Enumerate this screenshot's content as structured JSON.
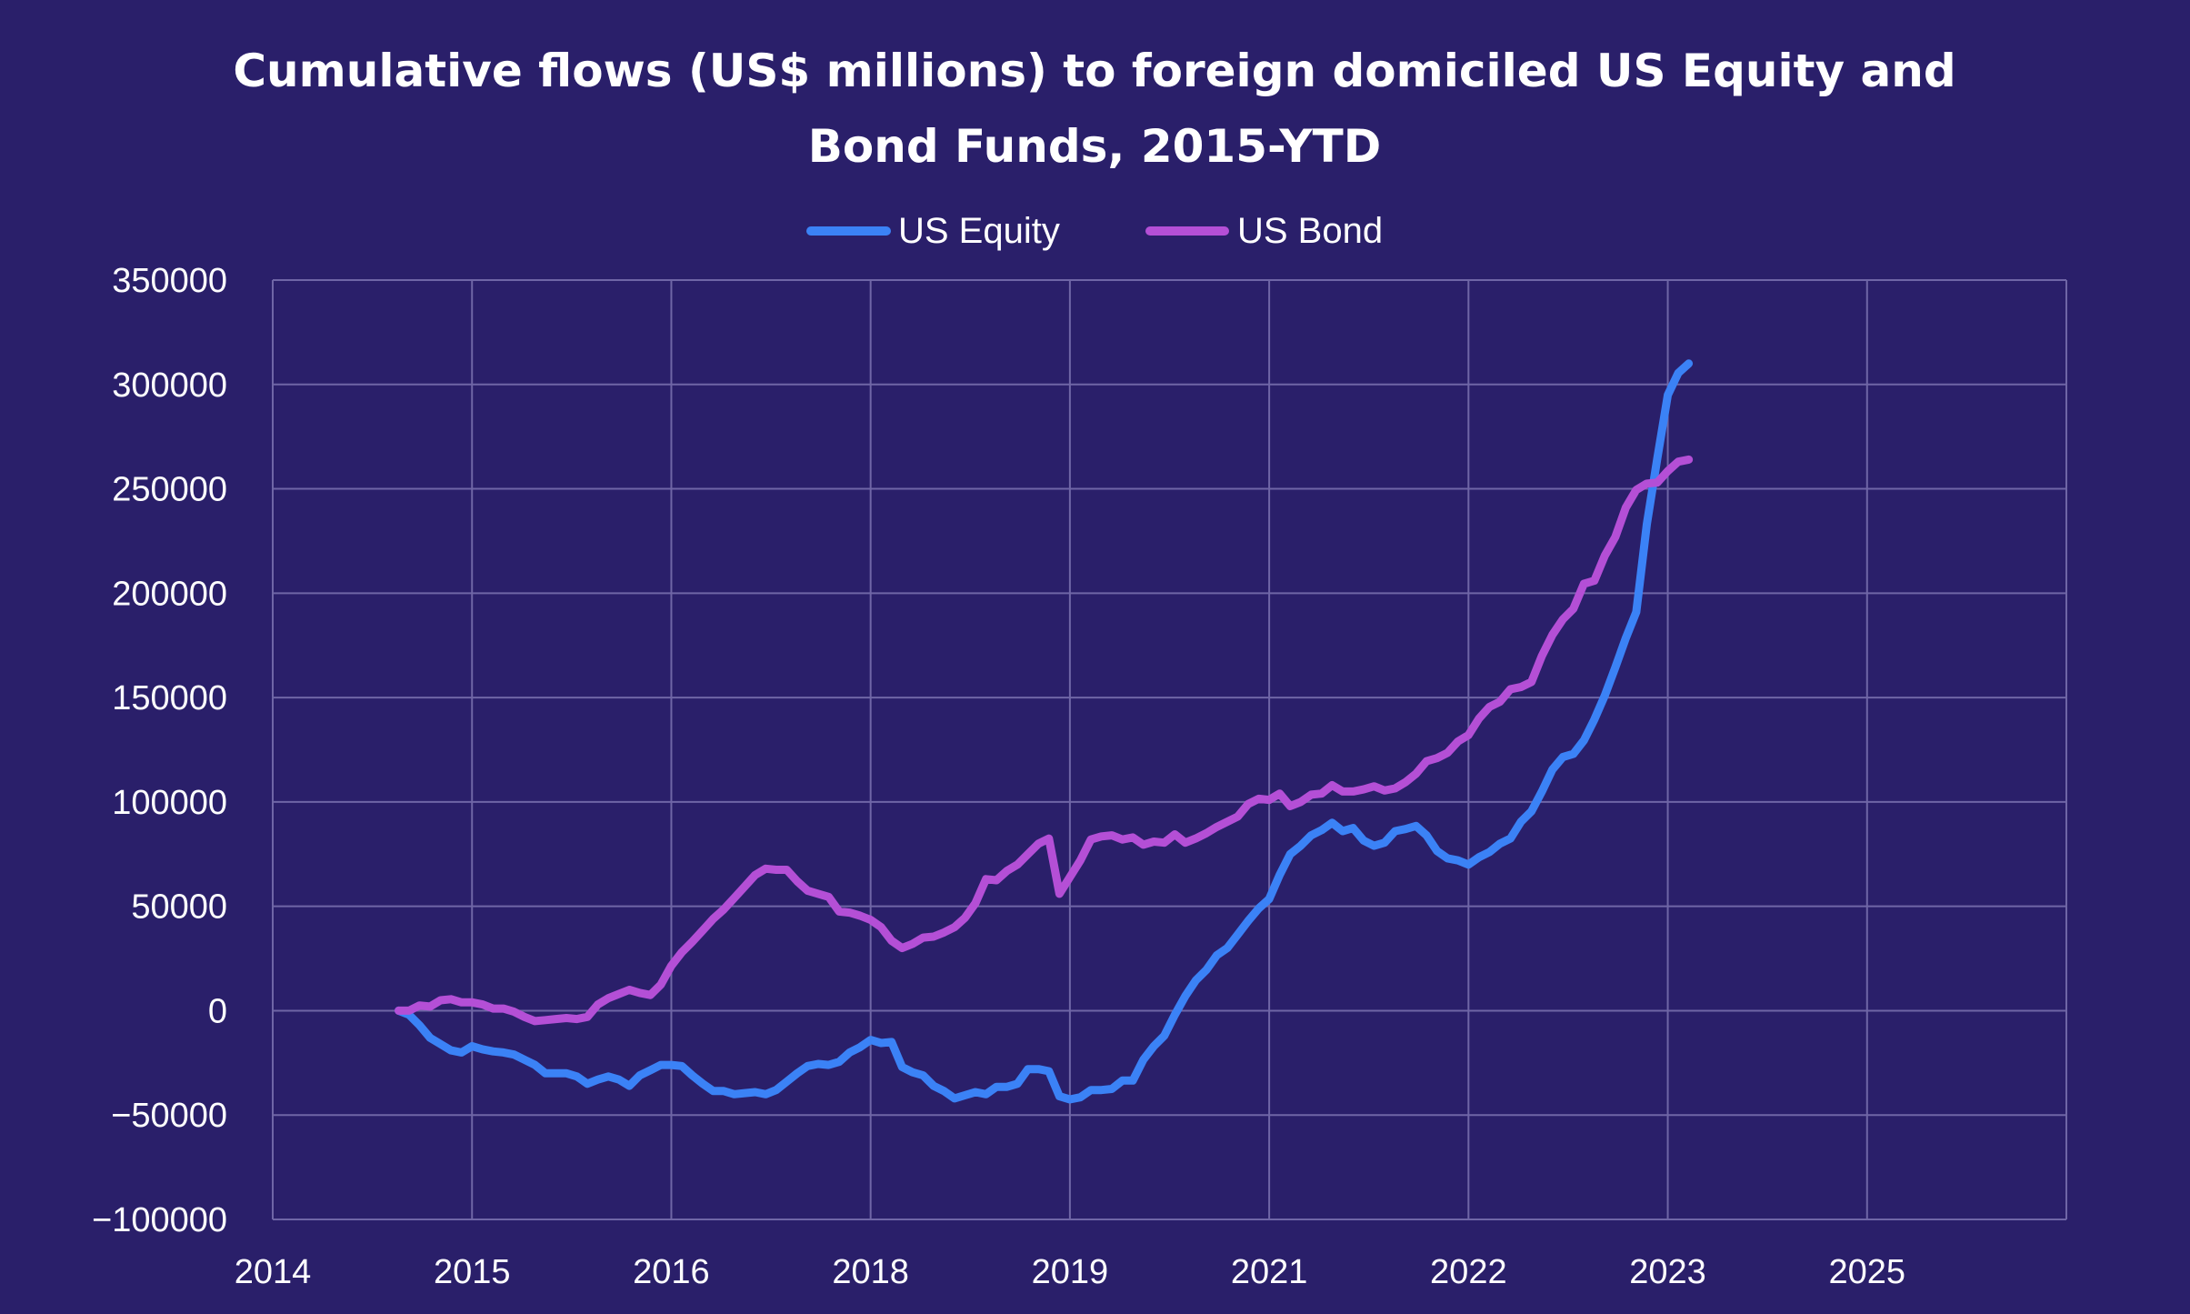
{
  "chart_data": {
    "type": "line",
    "title_line1": "Cumulative flows (US$ millions) to foreign domiciled US Equity and",
    "title_line2": "Bond Funds, 2015-YTD",
    "x_tick_labels": [
      "2014",
      "2015",
      "2016",
      "2018",
      "2019",
      "2021",
      "2022",
      "2023",
      "2025"
    ],
    "y_ticks": [
      350000,
      300000,
      250000,
      200000,
      150000,
      100000,
      50000,
      0,
      -50000,
      -100000
    ],
    "y_tick_labels": [
      "350000",
      "300000",
      "250000",
      "200000",
      "150000",
      "100000",
      "50000",
      "0",
      "−50000",
      "−100000"
    ],
    "ylim": [
      -100000,
      350000
    ],
    "x_index_range": [
      0,
      171
    ],
    "grid": true,
    "legend_position": "top-center",
    "colors": {
      "background": "#2a1f6a",
      "grid": "#6f66a6",
      "equity": "#3b82f6",
      "bond": "#b44fd6"
    },
    "series": [
      {
        "name": "US Equity",
        "color": "#3b82f6",
        "start_index": 12,
        "values": [
          0,
          -2000,
          -7000,
          -13000,
          -16000,
          -19000,
          -20000,
          -17000,
          -18500,
          -19500,
          -20000,
          -21000,
          -23500,
          -26000,
          -30000,
          -30000,
          -30000,
          -31500,
          -35000,
          -33000,
          -31500,
          -33000,
          -36000,
          -31000,
          -28500,
          -26000,
          -26000,
          -26500,
          -31000,
          -35000,
          -38500,
          -38500,
          -40000,
          -39500,
          -39000,
          -40000,
          -38000,
          -34000,
          -30000,
          -26500,
          -25500,
          -26000,
          -24500,
          -20000,
          -17500,
          -14000,
          -15500,
          -15000,
          -27000,
          -29500,
          -31000,
          -36000,
          -38500,
          -42000,
          -40500,
          -39000,
          -40000,
          -36500,
          -36500,
          -35000,
          -28000,
          -28000,
          -29000,
          -41000,
          -42500,
          -41500,
          -38000,
          -38000,
          -37500,
          -33500,
          -33500,
          -23500,
          -17000,
          -12000,
          -2000,
          7000,
          14500,
          19500,
          26500,
          30000,
          36500,
          43000,
          49000,
          53500,
          65000,
          75000,
          79000,
          84000,
          86500,
          90000,
          86000,
          87500,
          81500,
          79000,
          80500,
          86000,
          87000,
          88500,
          84000,
          76500,
          73000,
          72000,
          70000,
          73500,
          76000,
          80000,
          82500,
          90500,
          95500,
          105000,
          115500,
          121500,
          123000,
          129500,
          139500,
          151000,
          164500,
          178500,
          191000,
          233000,
          264500,
          295000,
          305500,
          310000
        ]
      },
      {
        "name": "US Bond",
        "color": "#b44fd6",
        "start_index": 12,
        "values": [
          0,
          0,
          2500,
          2000,
          5000,
          5500,
          4000,
          4000,
          3000,
          1000,
          1000,
          -500,
          -3000,
          -5000,
          -4500,
          -4000,
          -3500,
          -4000,
          -3000,
          3000,
          6000,
          8000,
          10000,
          8500,
          7500,
          12500,
          21500,
          28000,
          33000,
          38500,
          44000,
          48500,
          54000,
          59500,
          65000,
          68000,
          67500,
          67500,
          62000,
          57500,
          56000,
          54500,
          47500,
          47000,
          45500,
          43500,
          40000,
          33500,
          30000,
          32000,
          35000,
          35500,
          37500,
          40000,
          44500,
          51500,
          63000,
          62500,
          67000,
          70000,
          75000,
          80000,
          82500,
          56000,
          64000,
          72000,
          82000,
          83500,
          84000,
          82000,
          83000,
          79500,
          81000,
          80500,
          84500,
          80500,
          82500,
          85000,
          88000,
          90500,
          93000,
          99000,
          101500,
          101000,
          104000,
          98000,
          100000,
          103500,
          104000,
          108000,
          105000,
          105000,
          106000,
          107500,
          105500,
          106500,
          109500,
          113500,
          119500,
          121000,
          123500,
          129000,
          132000,
          140000,
          145500,
          148000,
          154000,
          155000,
          157500,
          170000,
          180000,
          187500,
          192500,
          204500,
          206000,
          218000,
          227000,
          241000,
          249500,
          252500,
          253000,
          258500,
          263000,
          264000
        ]
      }
    ]
  }
}
